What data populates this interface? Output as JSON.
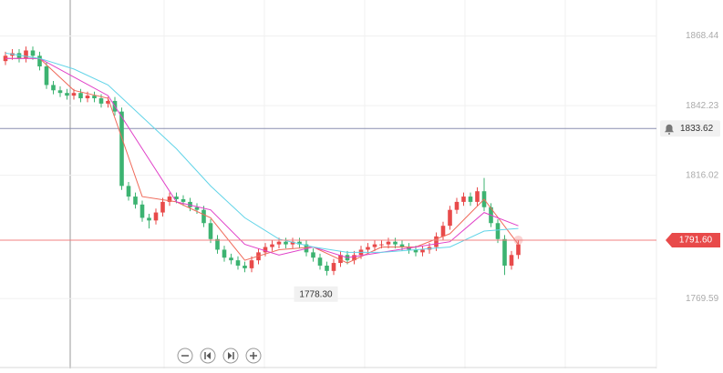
{
  "chart_data": {
    "type": "candlestick",
    "ylim": [
      1745,
      1882
    ],
    "yticks": [
      1868.44,
      1842.23,
      1816.02,
      1769.59
    ],
    "grid": true,
    "up_color": "#e84a4a",
    "down_color": "#3cb371",
    "open": [
      1859,
      1861,
      1862,
      1860,
      1863,
      1861,
      1857,
      1850,
      1848,
      1847,
      1846,
      1847,
      1845,
      1846,
      1845,
      1843,
      1844,
      1840,
      1812,
      1808,
      1805,
      1800,
      1799,
      1802,
      1806,
      1808,
      1807,
      1806,
      1804,
      1803,
      1798,
      1792,
      1788,
      1785,
      1784,
      1782,
      1781,
      1784,
      1787,
      1789,
      1790,
      1791,
      1790,
      1791,
      1790,
      1787,
      1785,
      1782,
      1780,
      1783,
      1786,
      1784,
      1786,
      1788,
      1789,
      1790,
      1790,
      1791,
      1790,
      1789,
      1788,
      1787,
      1788,
      1789,
      1793,
      1797,
      1803,
      1806,
      1808,
      1806,
      1810,
      1804,
      1798,
      1792,
      1782,
      1786
    ],
    "high": [
      1862.5,
      1863.5,
      1863.5,
      1864.5,
      1864.5,
      1862.5,
      1858.5,
      1851.5,
      1849.5,
      1848.5,
      1848.5,
      1848.5,
      1847.5,
      1847.5,
      1846.5,
      1845.5,
      1845.5,
      1841.5,
      1813.5,
      1809.5,
      1806.5,
      1801.5,
      1803.5,
      1807.5,
      1809.5,
      1809.5,
      1808.5,
      1807.5,
      1805.5,
      1804.5,
      1799.5,
      1793.5,
      1789.5,
      1786.5,
      1785.5,
      1783.5,
      1785.5,
      1788.5,
      1790.5,
      1791.5,
      1792.5,
      1792.5,
      1792.5,
      1792.5,
      1791.5,
      1788.5,
      1786.5,
      1783.5,
      1784.5,
      1787.5,
      1787.5,
      1787.5,
      1789.5,
      1790.5,
      1791.5,
      1791.5,
      1792.5,
      1792.5,
      1791.5,
      1790.5,
      1789.5,
      1789.5,
      1790.5,
      1794.5,
      1798.5,
      1804.5,
      1807.5,
      1809.5,
      1809.5,
      1811.5,
      1815,
      1805.5,
      1799.5,
      1793.5,
      1787.5,
      1791.5
    ],
    "low": [
      1857.5,
      1859.5,
      1858.5,
      1858.5,
      1859.5,
      1855.5,
      1848.5,
      1846.5,
      1845.5,
      1844.5,
      1844.5,
      1843.5,
      1843.5,
      1843.5,
      1841.5,
      1841.5,
      1838.5,
      1810.5,
      1806.5,
      1803.5,
      1798.5,
      1796,
      1797.5,
      1800.5,
      1804.5,
      1805.5,
      1804.5,
      1802.5,
      1801.5,
      1796.5,
      1790.5,
      1786.5,
      1783.5,
      1782.5,
      1780.5,
      1779.5,
      1779.5,
      1782.5,
      1785.5,
      1787.5,
      1788.5,
      1788.5,
      1788.5,
      1788.5,
      1785.5,
      1783.5,
      1780.5,
      1778.3,
      1778.5,
      1781.5,
      1782.5,
      1782.5,
      1784.5,
      1786.5,
      1787.5,
      1788.5,
      1788.5,
      1788.5,
      1787.5,
      1786.5,
      1785.5,
      1785.5,
      1786.5,
      1787.5,
      1791.5,
      1795.5,
      1801.5,
      1804.5,
      1804.5,
      1804.5,
      1802.5,
      1796.5,
      1790.5,
      1778.5,
      1780.5,
      1784.5
    ],
    "close": [
      1861,
      1862,
      1860,
      1863,
      1861,
      1857,
      1850,
      1848,
      1847,
      1846,
      1847,
      1845,
      1846,
      1845,
      1843,
      1844,
      1840,
      1812,
      1808,
      1805,
      1800,
      1799,
      1802,
      1806,
      1808,
      1807,
      1806,
      1804,
      1803,
      1798,
      1792,
      1788,
      1785,
      1784,
      1782,
      1781,
      1784,
      1787,
      1789,
      1790,
      1791,
      1790,
      1791,
      1790,
      1787,
      1785,
      1782,
      1780,
      1783,
      1786,
      1784,
      1786,
      1788,
      1789,
      1790,
      1790,
      1791,
      1790,
      1789,
      1788,
      1787,
      1788,
      1789,
      1793,
      1797,
      1803,
      1806,
      1808,
      1806,
      1810,
      1804,
      1798,
      1792,
      1782,
      1786,
      1790
    ],
    "line_x": [
      0,
      5,
      10,
      15,
      20,
      25,
      30,
      35,
      40,
      45,
      50,
      55,
      60,
      65,
      70,
      75
    ],
    "series": [
      {
        "color": "#f06a5a",
        "values": [
          1860,
          1860,
          1848,
          1845,
          1808,
          1806,
          1800,
          1784,
          1788,
          1789,
          1783,
          1789,
          1789,
          1794,
          1807,
          1790
        ]
      },
      {
        "color": "#e040c8",
        "values": [
          1860,
          1860,
          1853,
          1846,
          1826,
          1806,
          1803,
          1790,
          1786,
          1789,
          1785,
          1787,
          1789,
          1791,
          1802,
          1797
        ]
      },
      {
        "color": "#62d4e8",
        "values": [
          1862,
          1860,
          1856,
          1850,
          1838,
          1826,
          1812,
          1800,
          1792,
          1789,
          1787,
          1787,
          1788,
          1789,
          1795,
          1796
        ]
      }
    ],
    "low_label": "1778.30",
    "alert_line": {
      "value": 1833.62,
      "label": "1833.62"
    },
    "current_price": {
      "value": 1791.6,
      "label": "1791.60"
    }
  }
}
